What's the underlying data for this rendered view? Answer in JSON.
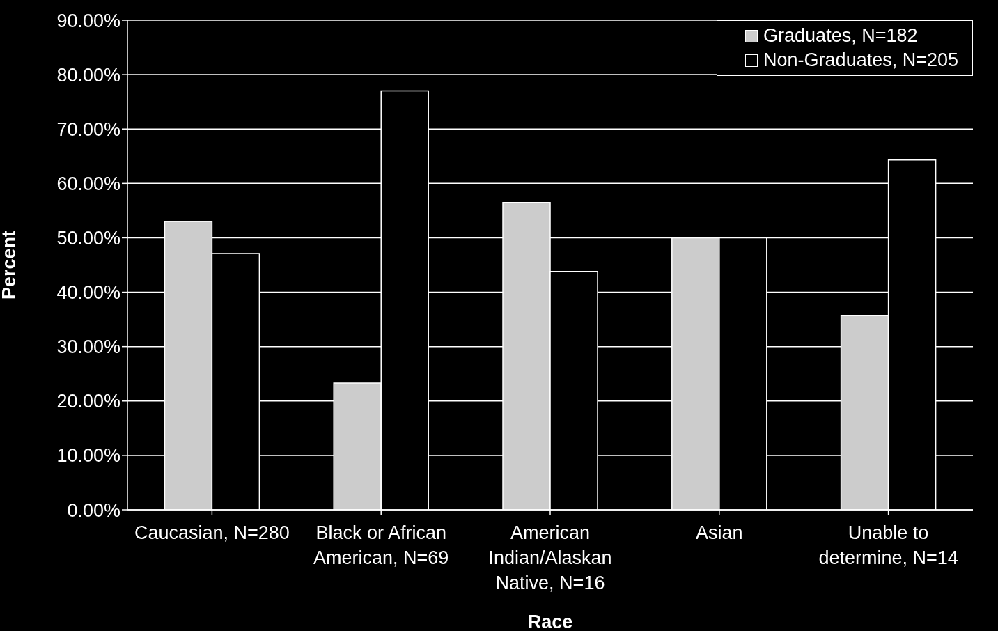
{
  "chart_data": {
    "type": "bar",
    "xlabel": "Race",
    "ylabel": "Percent",
    "categories": [
      "Caucasian, N=280",
      "Black or African American, N=69",
      "American Indian/Alaskan Native, N=16",
      "Asian",
      "Unable to determine, N=14"
    ],
    "series": [
      {
        "name": "Graduates, N=182",
        "color": "#cccccc",
        "values": [
          53.0,
          23.3,
          56.5,
          50.0,
          35.7
        ]
      },
      {
        "name": "Non-Graduates, N=205",
        "color": "#000000",
        "values": [
          47.1,
          77.0,
          43.8,
          50.0,
          64.3
        ]
      }
    ],
    "ylim": [
      0,
      90
    ],
    "yticks": [
      {
        "value": 0,
        "label": "0.00%"
      },
      {
        "value": 10,
        "label": "10.00%"
      },
      {
        "value": 20,
        "label": "20.00%"
      },
      {
        "value": 30,
        "label": "30.00%"
      },
      {
        "value": 40,
        "label": "40.00%"
      },
      {
        "value": 50,
        "label": "50.00%"
      },
      {
        "value": 60,
        "label": "60.00%"
      },
      {
        "value": 70,
        "label": "70.00%"
      },
      {
        "value": 80,
        "label": "80.00%"
      },
      {
        "value": 90,
        "label": "90.00%"
      }
    ],
    "grid": "y",
    "legend": "top right"
  }
}
